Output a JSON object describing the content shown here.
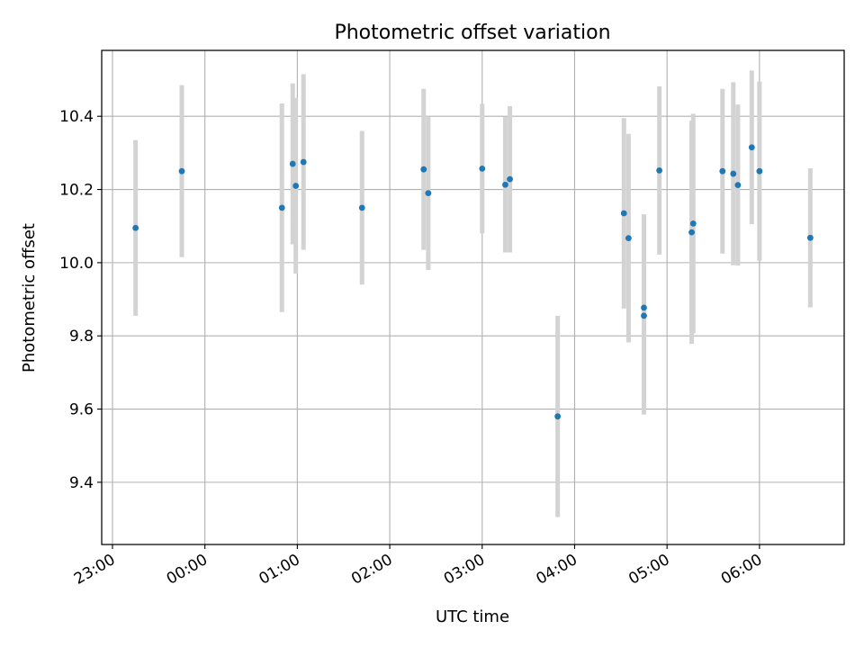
{
  "chart_data": {
    "type": "scatter",
    "title": "Photometric offset variation",
    "xlabel": "UTC time",
    "ylabel": "Photometric offset",
    "x_unit": "UTC time (HH:MM)",
    "xlim": [
      "22:53",
      "06:55"
    ],
    "ylim": [
      9.23,
      10.58
    ],
    "x_ticks": [
      "23:00",
      "00:00",
      "01:00",
      "02:00",
      "03:00",
      "04:00",
      "05:00",
      "06:00"
    ],
    "y_ticks": [
      9.4,
      9.6,
      9.8,
      10.0,
      10.2,
      10.4
    ],
    "y_tick_labels": [
      "9.4",
      "9.6",
      "9.8",
      "10.0",
      "10.2",
      "10.4"
    ],
    "grid": true,
    "series": [
      {
        "marker_color": "#1f77b4",
        "errorbar_color": "#d3d3d3",
        "points": [
          {
            "x": "23:15",
            "y": 10.095,
            "err": 0.24
          },
          {
            "x": "23:45",
            "y": 10.25,
            "err": 0.235
          },
          {
            "x": "00:50",
            "y": 10.15,
            "err": 0.285
          },
          {
            "x": "00:57",
            "y": 10.27,
            "err": 0.22
          },
          {
            "x": "00:59",
            "y": 10.21,
            "err": 0.24
          },
          {
            "x": "01:04",
            "y": 10.275,
            "err": 0.24
          },
          {
            "x": "01:42",
            "y": 10.15,
            "err": 0.21
          },
          {
            "x": "02:22",
            "y": 10.255,
            "err": 0.22
          },
          {
            "x": "02:25",
            "y": 10.19,
            "err": 0.21
          },
          {
            "x": "03:00",
            "y": 10.257,
            "err": 0.177
          },
          {
            "x": "03:15",
            "y": 10.213,
            "err": 0.185
          },
          {
            "x": "03:18",
            "y": 10.228,
            "err": 0.2
          },
          {
            "x": "03:49",
            "y": 9.58,
            "err": 0.275
          },
          {
            "x": "04:32",
            "y": 10.135,
            "err": 0.26
          },
          {
            "x": "04:35",
            "y": 10.067,
            "err": 0.285
          },
          {
            "x": "04:45",
            "y": 9.855,
            "err": 0.27
          },
          {
            "x": "04:45",
            "y": 9.877,
            "err": 0.255
          },
          {
            "x": "04:55",
            "y": 10.252,
            "err": 0.23
          },
          {
            "x": "05:16",
            "y": 10.083,
            "err": 0.305
          },
          {
            "x": "05:17",
            "y": 10.107,
            "err": 0.3
          },
          {
            "x": "05:36",
            "y": 10.25,
            "err": 0.225
          },
          {
            "x": "05:43",
            "y": 10.243,
            "err": 0.25
          },
          {
            "x": "05:46",
            "y": 10.212,
            "err": 0.22
          },
          {
            "x": "05:55",
            "y": 10.315,
            "err": 0.21
          },
          {
            "x": "06:00",
            "y": 10.25,
            "err": 0.245
          },
          {
            "x": "06:33",
            "y": 10.068,
            "err": 0.19
          }
        ]
      }
    ]
  }
}
